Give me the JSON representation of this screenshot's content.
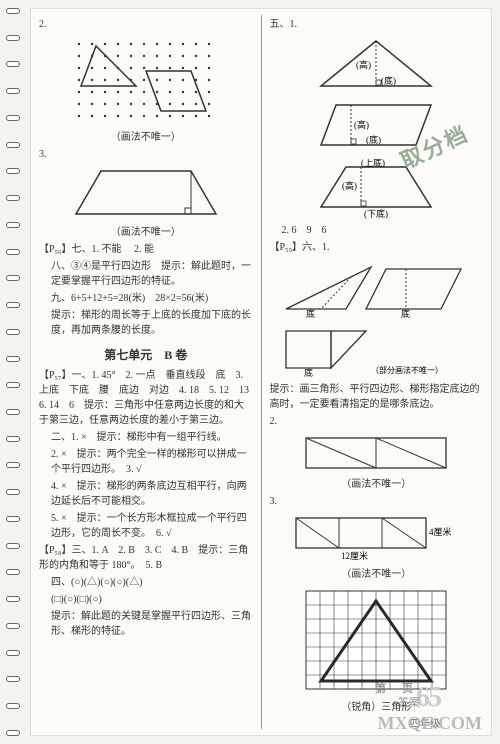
{
  "spiral_count": 28,
  "left": {
    "item2_label": "2.",
    "dots_caption": "（画法不唯一）",
    "item3_label": "3.",
    "trap_caption": "（画法不唯一）",
    "p56_ref": "【P₅₆】七、1.",
    "p56_a1": "不能",
    "p56_a2": "2. 能",
    "eight_line": "八、③④是平行四边形　提示：解此题时，一定要掌握平行四边形的特征。",
    "nine_line1": "九、6+5+12+5=28(米)　28×2=56(米)",
    "nine_line2": "提示：梯形的周长等于上底的长度加下底的长度，再加两条腰的长度。",
    "unit_heading": "第七单元　B 卷",
    "p57_ref": "【P₅₇】一、1.",
    "p57_a": "45°　2. 一点　垂直线段　底　3. 上底　下底　腰　底边　对边　4. 18　5. 12　13　6. 14　6　提示：三角形中任意两边长度的和大于第三边，任意两边长度的差小于第三边。",
    "two_1": "二、1. ×　提示：梯形中有一组平行线。",
    "two_2": "2. ×　提示：两个完全一样的梯形可以拼成一个平行四边形。　3. √",
    "two_4": "4. ×　提示：梯形的两条底边互相平行，向两边延长后不可能相交。",
    "two_5": "5. ×　提示：一个长方形木框拉成一个平行四边形，它的周长不变。　6. √",
    "p58_ref": "【P₅₈】三、1. A　2. B　3. C　4. B　提示：三角形的内角和等于 180°。　5. B",
    "four_line": "四、(○)(△)(○)(○)(△)",
    "four_line2": "(□)(○)(□)(○)",
    "four_hint": "提示：解此题的关键是掌握平行四边形、三角形、梯形的特征。"
  },
  "right": {
    "five_label": "五、1.",
    "tri_h": "(高)",
    "tri_b": "(底)",
    "para_h": "(高)",
    "para_b": "(底)",
    "trap_top": "(上底)",
    "trap_h": "(高)",
    "trap_bot": "(下底)",
    "five_2": "2. 6　9　6",
    "p59_ref": "【P₅₉】六、1.",
    "lbl_base": "底",
    "partial_caption": "（部分画法不唯一）",
    "six_hint": "提示：画三角形、平行四边形、梯形指定底边的高时，一定要看清指定的是哪条底边。",
    "item2_label": "2.",
    "fig2_caption": "（画法不唯一）",
    "item3_label": "3.",
    "dim_right": "4厘米",
    "dim_bottom": "12厘米",
    "fig3_caption": "（画法不唯一）",
    "grid_caption": "（锐角）三角形"
  },
  "stamp_text": "取分档",
  "page_number": "65",
  "page_label": "第　　页",
  "footer": "四年级",
  "watermark": "MXQE.COM",
  "answer_label": "答案",
  "colors": {
    "bg": "#f5f3ef",
    "paper": "#fcfbf8",
    "line": "#333",
    "stamp": "#5a7a5a",
    "grid_dark": "#2a2a2a"
  }
}
